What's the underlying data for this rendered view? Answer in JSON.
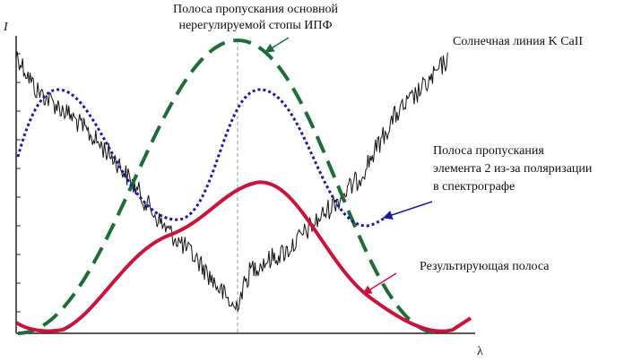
{
  "axes": {
    "y_label": "I",
    "x_label": "λ"
  },
  "annotations": {
    "ipf_band": [
      "Полоса пропускания основной",
      "нерегулируемой стопы ИПФ"
    ],
    "solar_line": [
      "Солнечная линия K CaII"
    ],
    "polarization_band": [
      "Полоса пропускания",
      "элемента 2 из-за поляризации",
      "в спектрографе"
    ],
    "resulting_band": [
      "Результирующая полоса"
    ]
  }
}
